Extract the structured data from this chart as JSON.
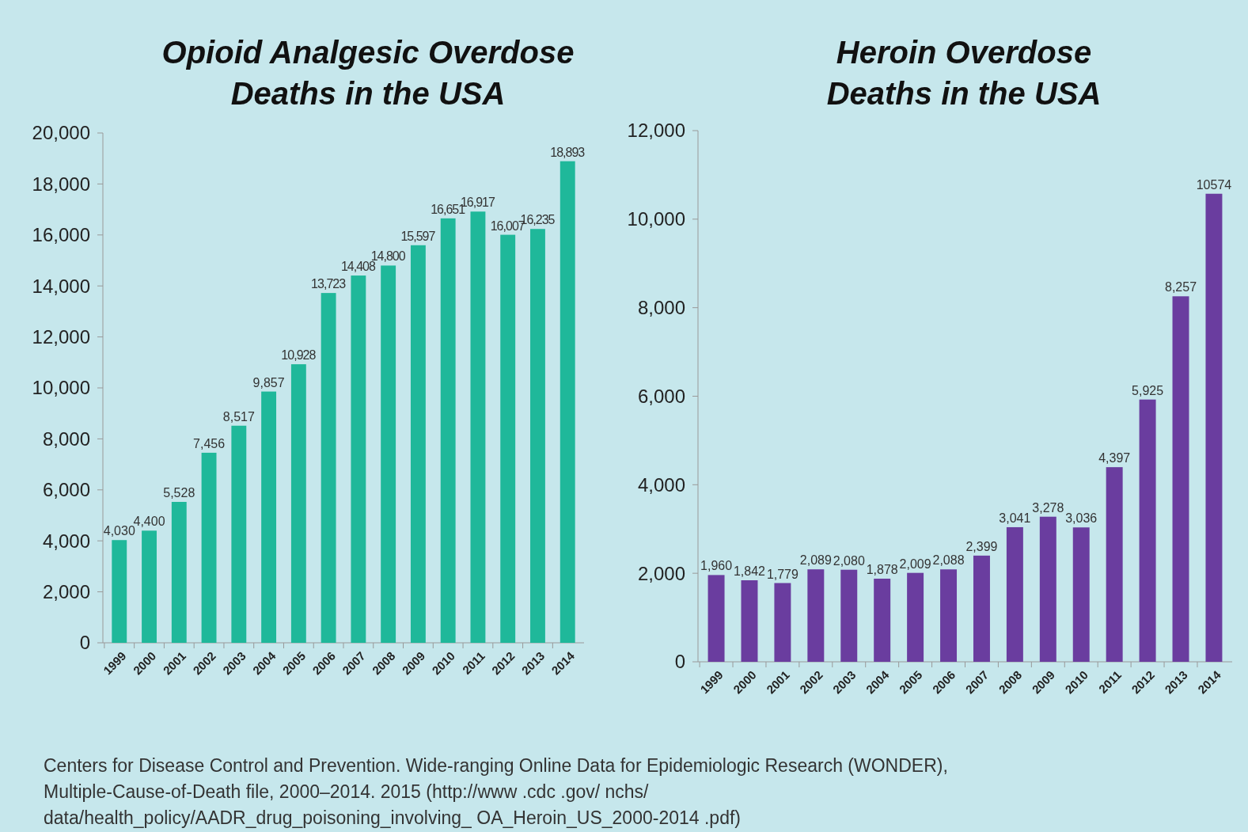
{
  "chart_data": [
    {
      "type": "bar",
      "title": "Opioid Analgesic Overdose Deaths in the USA",
      "categories": [
        "1999",
        "2000",
        "2001",
        "2002",
        "2003",
        "2004",
        "2005",
        "2006",
        "2007",
        "2008",
        "2009",
        "2010",
        "2011",
        "2012",
        "2013",
        "2014"
      ],
      "values": [
        4030,
        4400,
        5528,
        7456,
        8517,
        9857,
        10928,
        13723,
        14408,
        14800,
        15597,
        16651,
        16917,
        16007,
        16235,
        18893
      ],
      "value_labels": [
        "4,030",
        "4,400",
        "5,528",
        "7,456",
        "8,517",
        "9,857",
        "10,928",
        "13,723",
        "14,408",
        "14,800",
        "15,597",
        "16,651",
        "16,917",
        "16,007",
        "16,235",
        "18,893"
      ],
      "color": "#1fb89a",
      "ylim": [
        0,
        20000
      ],
      "yticks": [
        {
          "value": 0,
          "label": "0"
        },
        {
          "value": 2000,
          "label": "2,000"
        },
        {
          "value": 4000,
          "label": "4,000"
        },
        {
          "value": 6000,
          "label": "6,000"
        },
        {
          "value": 8000,
          "label": "8,000"
        },
        {
          "value": 10000,
          "label": "10,000"
        },
        {
          "value": 12000,
          "label": "12,000"
        },
        {
          "value": 14000,
          "label": "14,000"
        },
        {
          "value": 16000,
          "label": "16,000"
        },
        {
          "value": 18000,
          "label": "18,000"
        },
        {
          "value": 20000,
          "label": "20,000"
        }
      ],
      "grid": false,
      "annotations": [
        "Centers for Disease Control and Prevention.  Wide-ranging Online Data for Epidemiologic Research (WONDER),  Multiple-Cause-of-Death file, 2000–2014. 2015 (http://www .cdc .gov/ nchs/ data/health_policy/AADR_drug_poisoning_involving_ OA_Heroin_US_2000-2014 .pdf)"
      ]
    },
    {
      "type": "bar",
      "title": "Heroin Overdose Deaths in the USA",
      "categories": [
        "1999",
        "2000",
        "2001",
        "2002",
        "2003",
        "2004",
        "2005",
        "2006",
        "2007",
        "2008",
        "2009",
        "2010",
        "2011",
        "2012",
        "2013",
        "2014"
      ],
      "values": [
        1960,
        1842,
        1779,
        2089,
        2080,
        1878,
        2009,
        2088,
        2399,
        3041,
        3278,
        3036,
        4397,
        5925,
        8257,
        10574
      ],
      "value_labels": [
        "1,960",
        "1,842",
        "1,779",
        "2,089",
        "2,080",
        "1,878",
        "2,009",
        "2,088",
        "2,399",
        "3,041",
        "3,278",
        "3,036",
        "4,397",
        "5,925",
        "8,257",
        "10574"
      ],
      "color": "#6a3d9f",
      "ylim": [
        0,
        12000
      ],
      "yticks": [
        {
          "value": 0,
          "label": "0"
        },
        {
          "value": 2000,
          "label": "2,000"
        },
        {
          "value": 4000,
          "label": "4,000"
        },
        {
          "value": 6000,
          "label": "6,000"
        },
        {
          "value": 8000,
          "label": "8,000"
        },
        {
          "value": 10000,
          "label": "10,000"
        },
        {
          "value": 12000,
          "label": "12,000"
        }
      ],
      "grid": false
    }
  ]
}
